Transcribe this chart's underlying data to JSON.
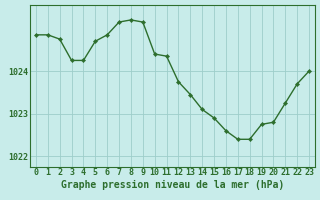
{
  "hours": [
    0,
    1,
    2,
    3,
    4,
    5,
    6,
    7,
    8,
    9,
    10,
    11,
    12,
    13,
    14,
    15,
    16,
    17,
    18,
    19,
    20,
    21,
    22,
    23
  ],
  "pressure": [
    1024.85,
    1024.85,
    1024.75,
    1024.25,
    1024.25,
    1024.7,
    1024.85,
    1025.15,
    1025.2,
    1025.15,
    1024.4,
    1024.35,
    1023.75,
    1023.45,
    1023.1,
    1022.9,
    1022.6,
    1022.4,
    1022.4,
    1022.75,
    1022.8,
    1023.25,
    1023.7,
    1024.0
  ],
  "line_color": "#2d6e2d",
  "marker_color": "#2d6e2d",
  "bg_color": "#c8ecea",
  "grid_color": "#9ececa",
  "axis_color": "#2d6e2d",
  "xlabel_label": "Graphe pression niveau de la mer (hPa)",
  "ylim_min": 1021.75,
  "ylim_max": 1025.55,
  "yticks": [
    1022,
    1023,
    1024
  ],
  "xlim_min": -0.5,
  "xlim_max": 23.5,
  "font_color": "#2d6e2d",
  "tick_fontsize": 6.0,
  "xlabel_fontsize": 7.0
}
